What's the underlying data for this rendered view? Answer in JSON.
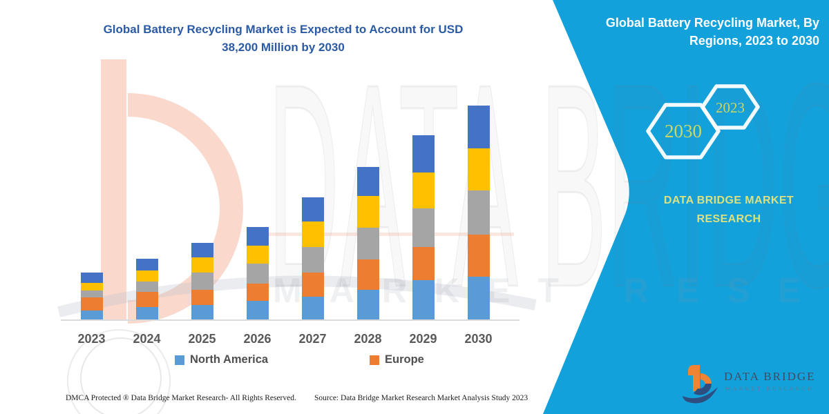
{
  "header": {
    "title": "Global Battery Recycling Market is Expected to Account for USD\n38,200 Million by 2030"
  },
  "chart_data": {
    "type": "bar",
    "stacked": true,
    "title": "Global Battery Recycling Market is Expected to Account for USD 38,200 Million by 2030",
    "unit": "USD Million",
    "xlabel": "",
    "ylabel": "",
    "y_axis_visible": false,
    "grid": false,
    "legend_position": "bottom",
    "categories": [
      "2023",
      "2024",
      "2025",
      "2026",
      "2027",
      "2028",
      "2029",
      "2030"
    ],
    "series": [
      {
        "name": "North America",
        "in_legend": true,
        "color": "#5B9BD5",
        "values": [
          1650,
          2250,
          2650,
          3350,
          4100,
          5350,
          7000,
          7600
        ]
      },
      {
        "name": "Europe",
        "in_legend": true,
        "color": "#ED7D31",
        "values": [
          2250,
          2650,
          2650,
          3100,
          4300,
          5350,
          6000,
          7600
        ]
      },
      {
        "name": "",
        "in_legend": false,
        "color": "#A5A5A5",
        "values": [
          1300,
          1850,
          3100,
          3550,
          4500,
          5650,
          6800,
          7800
        ]
      },
      {
        "name": "",
        "in_legend": false,
        "color": "#FFC000",
        "values": [
          1350,
          2050,
          2650,
          3150,
          4600,
          5650,
          6500,
          7600
        ]
      },
      {
        "name": "",
        "in_legend": false,
        "color": "#4472C4",
        "values": [
          1850,
          2050,
          2650,
          3400,
          4350,
          5250,
          6600,
          7600
        ]
      }
    ],
    "totals": [
      8400,
      10850,
      13700,
      16550,
      21850,
      27250,
      32900,
      38200
    ],
    "legend": [
      {
        "label": "North America",
        "color": "#5B9BD5"
      },
      {
        "label": "Europe",
        "color": "#ED7D31"
      }
    ]
  },
  "panel": {
    "background_color": "#13A1DB",
    "heading": "Global Battery Recycling Market, By\nRegions, 2023 to 2030",
    "hexagons": [
      {
        "label": "2030"
      },
      {
        "label": "2023"
      }
    ],
    "brand_text": "DATA BRIDGE MARKET\nRESEARCH",
    "accent_text_color": "#DCE180"
  },
  "logo": {
    "title": "DATA BRIDGE",
    "subtitle": "MARKET RESEARCH"
  },
  "watermark": {
    "row1": "DATA BRIDGE",
    "row2": "MARKET RESEARCH"
  },
  "footer": {
    "dmca": "DMCA Protected ® Data Bridge Market Research-  All Rights Reserved.",
    "source": "Source: Data Bridge Market Research  Market Analysis Study 2023"
  }
}
